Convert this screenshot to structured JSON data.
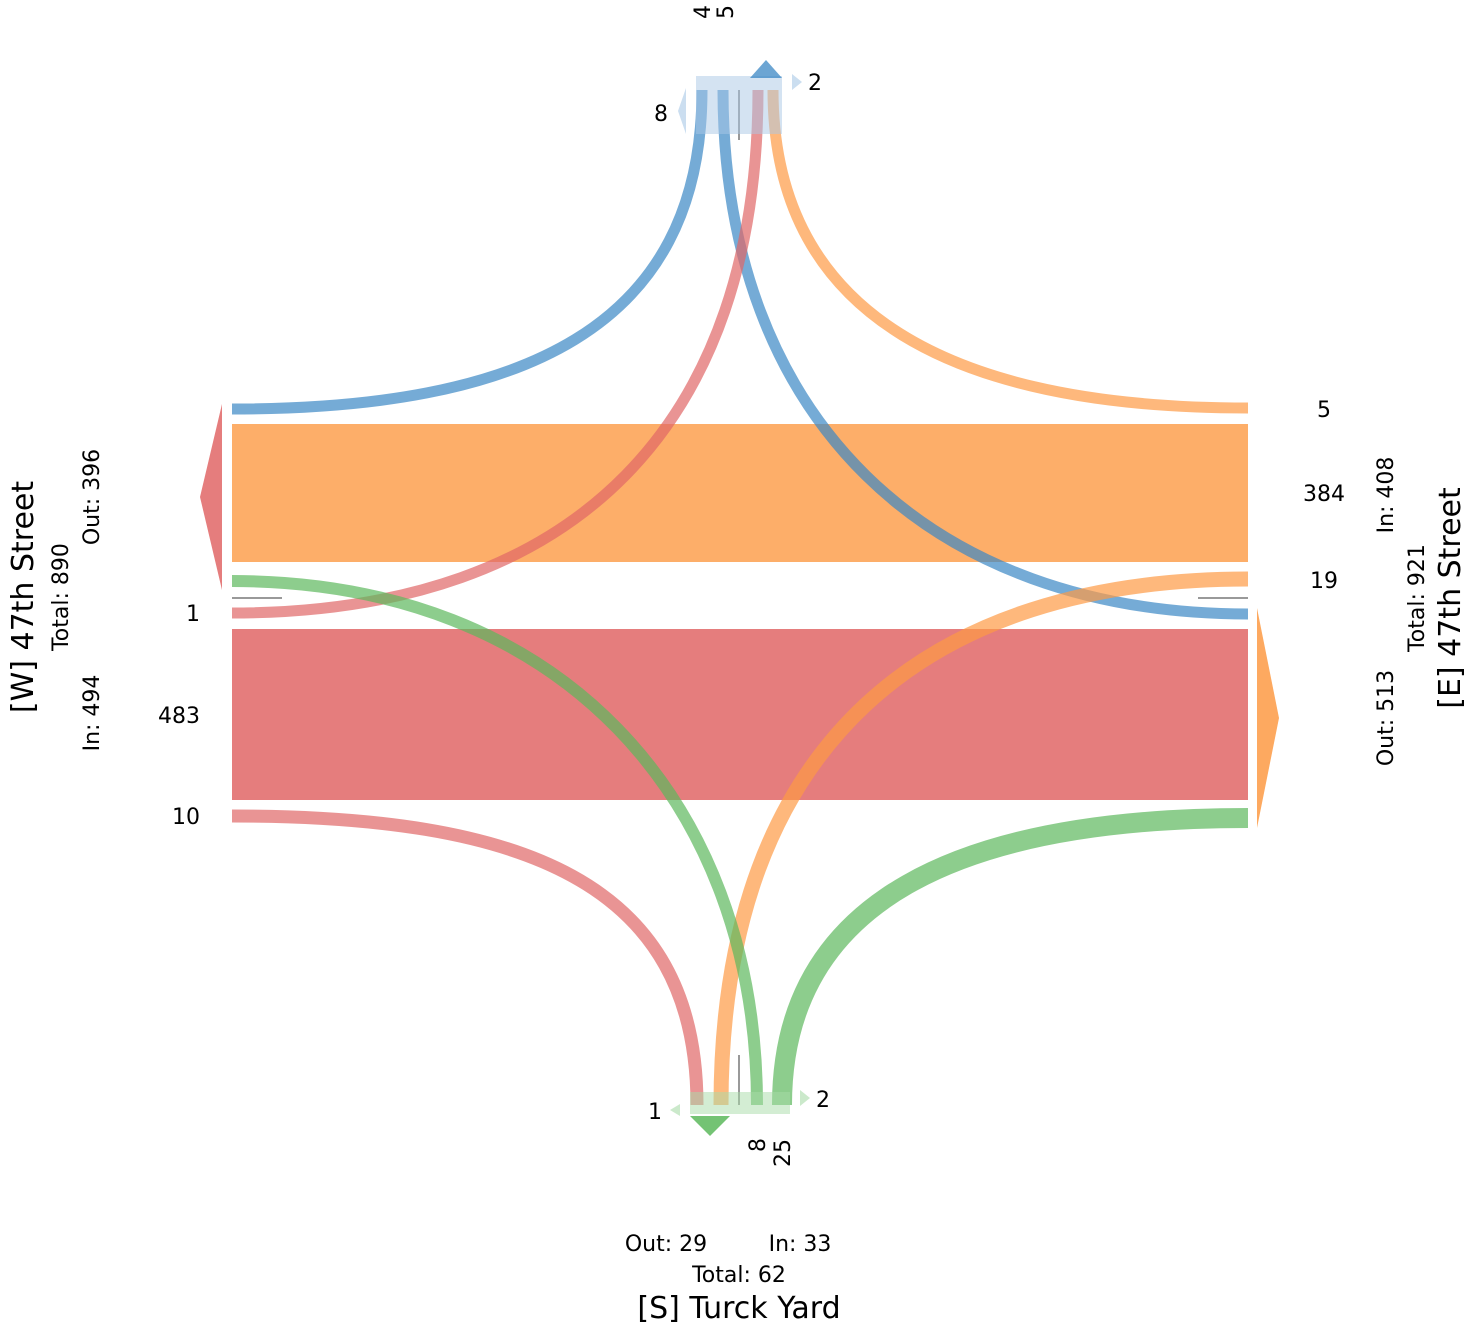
{
  "diagram": {
    "type": "turning-movement-count",
    "legs": {
      "west": {
        "name": "[W] 47th Street",
        "total_label": "Total: 890",
        "in_label": "In: 494",
        "out_label": "Out: 396",
        "movements": {
          "left": "10",
          "through": "483",
          "right": "1"
        }
      },
      "east": {
        "name": "[E] 47th Street",
        "total_label": "Total: 921",
        "in_label": "In: 408",
        "out_label": "Out: 513",
        "movements": {
          "left": "5",
          "through": "384",
          "right": "19"
        }
      },
      "south": {
        "name": "[S] Turck Yard",
        "total_label": "Total: 62",
        "in_label": "In: 33",
        "out_label": "Out: 29",
        "movements": {
          "uturn": "1",
          "right": "25",
          "left": "8",
          "uturn_right": "2"
        }
      },
      "north": {
        "movements": {
          "uturn_left": "8",
          "a": "4",
          "b": "5",
          "uturn_right": "2"
        }
      }
    },
    "colors": {
      "west_in": "#e06666",
      "east_in": "#fd9a44",
      "south_in": "#5cb85c",
      "north_in": "#3b87c4"
    }
  }
}
